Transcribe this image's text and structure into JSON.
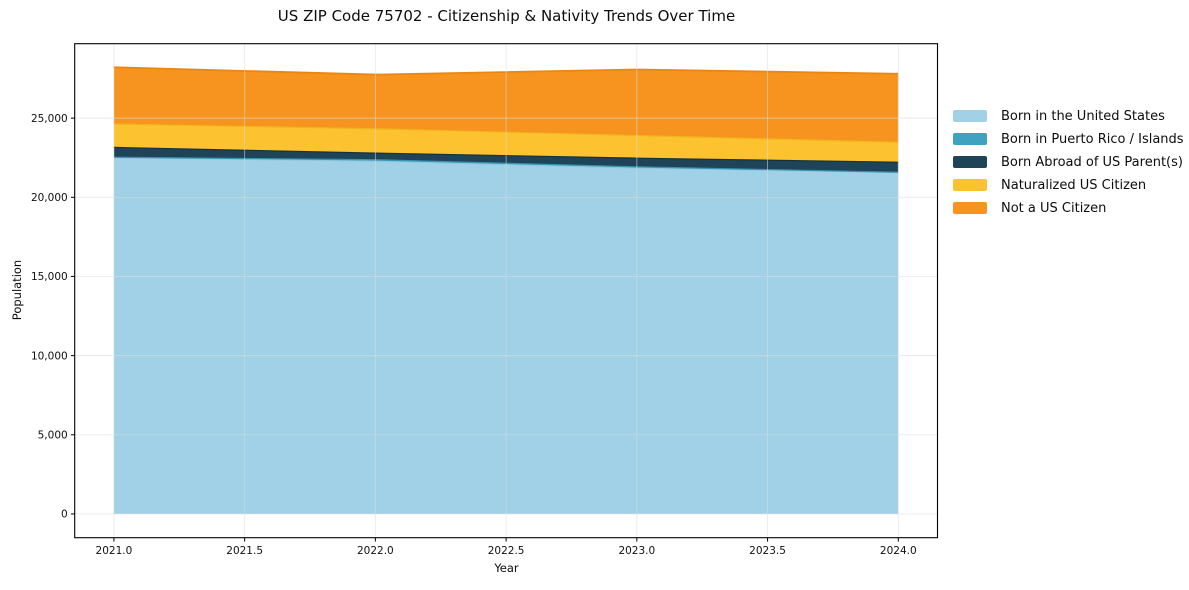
{
  "chart_data": {
    "type": "area",
    "stacked": true,
    "title": "US ZIP Code 75702 - Citizenship & Nativity Trends Over Time",
    "xlabel": "Year",
    "ylabel": "Population",
    "x": [
      2021,
      2022,
      2023,
      2024
    ],
    "series": [
      {
        "name": "Born in the United States",
        "color": "#a0d1e6",
        "edge": "#8fc6de",
        "values": [
          22500,
          22280,
          21850,
          21560
        ]
      },
      {
        "name": "Born in Puerto Rico / Islands",
        "color": "#3fa2c1",
        "edge": "#3793b1",
        "values": [
          30,
          90,
          70,
          20
        ]
      },
      {
        "name": "Born Abroad of US Parent(s)",
        "color": "#204457",
        "edge": "#16323f",
        "values": [
          620,
          420,
          550,
          635
        ]
      },
      {
        "name": "Naturalized US Citizen",
        "color": "#fcc230",
        "edge": "#f0b41c",
        "values": [
          1480,
          1540,
          1430,
          1265
        ]
      },
      {
        "name": "Not a US Citizen",
        "color": "#f6941f",
        "edge": "#ea8612",
        "values": [
          3580,
          3420,
          4170,
          4320
        ]
      }
    ],
    "xlim": [
      2020.85,
      2024.15
    ],
    "ylim": [
      -1500,
      29700
    ],
    "xticks": {
      "values": [
        2021,
        2021.5,
        2022,
        2022.5,
        2023,
        2023.5,
        2024
      ],
      "labels": [
        "2021.0",
        "2021.5",
        "2022.0",
        "2022.5",
        "2023.0",
        "2023.5",
        "2024.0"
      ]
    },
    "yticks": {
      "values": [
        0,
        5000,
        10000,
        15000,
        20000,
        25000
      ],
      "labels": [
        "0",
        "5,000",
        "10,000",
        "15,000",
        "20,000",
        "25,000"
      ]
    },
    "grid": true,
    "grid_color": "#dcdcdc",
    "frame_color": "#000000",
    "tick_text_color": "#111111",
    "legend_position": "right"
  }
}
